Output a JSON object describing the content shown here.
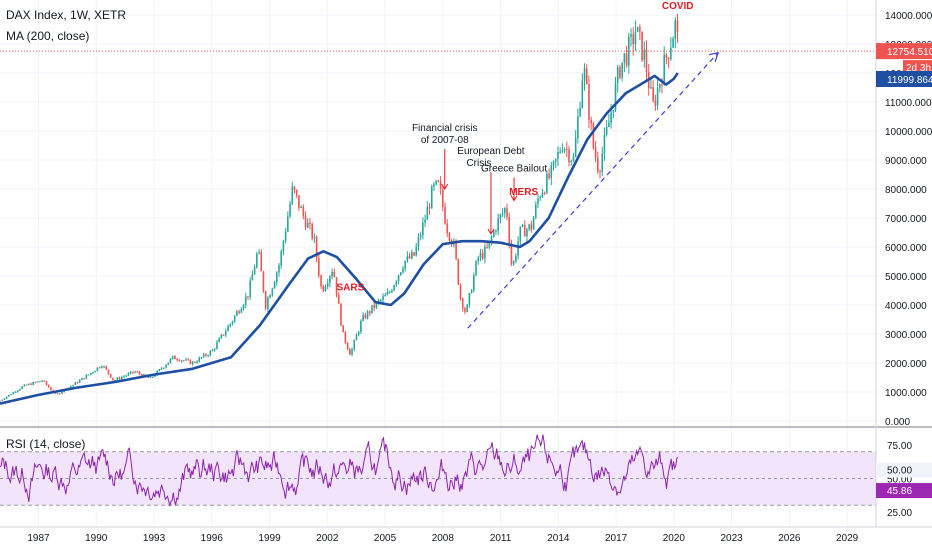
{
  "header": {
    "title": "DAX Index, 1W, XETR",
    "ma_label": "MA (200, close)",
    "rsi_label": "RSI (14, close)"
  },
  "chart_data": {
    "type": "candlestick",
    "price_axis": {
      "min": 0,
      "max": 14000,
      "ticks": [
        "0.000",
        "1000.000",
        "2000.000",
        "3000.000",
        "4000.000",
        "5000.000",
        "6000.000",
        "7000.000",
        "8000.000",
        "9000.000",
        "10000.000",
        "11000.000",
        "12000.000",
        "13000.000",
        "14000.000"
      ]
    },
    "time_axis": {
      "min": 1985.0,
      "max": 2030.5,
      "ticks": [
        "1987",
        "1990",
        "1993",
        "1996",
        "1999",
        "2002",
        "2005",
        "2008",
        "2011",
        "2014",
        "2017",
        "2020",
        "2023",
        "2026",
        "2029"
      ]
    },
    "price_path": [
      [
        1985.0,
        700
      ],
      [
        1986.2,
        1200
      ],
      [
        1987.2,
        1400
      ],
      [
        1987.9,
        900
      ],
      [
        1988.8,
        1250
      ],
      [
        1989.6,
        1600
      ],
      [
        1990.3,
        1950
      ],
      [
        1990.9,
        1400
      ],
      [
        1992.0,
        1700
      ],
      [
        1992.8,
        1450
      ],
      [
        1994.0,
        2200
      ],
      [
        1995.0,
        2000
      ],
      [
        1996.0,
        2400
      ],
      [
        1997.0,
        3400
      ],
      [
        1997.9,
        4400
      ],
      [
        1998.4,
        5900
      ],
      [
        1998.8,
        4000
      ],
      [
        1999.5,
        5400
      ],
      [
        2000.2,
        8000
      ],
      [
        2000.8,
        7000
      ],
      [
        2001.3,
        6300
      ],
      [
        2001.7,
        4500
      ],
      [
        2002.3,
        5300
      ],
      [
        2002.8,
        3000
      ],
      [
        2003.2,
        2300
      ],
      [
        2003.8,
        3500
      ],
      [
        2004.5,
        4000
      ],
      [
        2005.2,
        4400
      ],
      [
        2006.0,
        5500
      ],
      [
        2006.5,
        5700
      ],
      [
        2007.0,
        6800
      ],
      [
        2007.5,
        8000
      ],
      [
        2007.8,
        8100
      ],
      [
        2008.2,
        6700
      ],
      [
        2008.6,
        6000
      ],
      [
        2008.9,
        4300
      ],
      [
        2009.2,
        3700
      ],
      [
        2009.8,
        5600
      ],
      [
        2010.3,
        5900
      ],
      [
        2010.8,
        6800
      ],
      [
        2011.3,
        7400
      ],
      [
        2011.6,
        5200
      ],
      [
        2012.0,
        6500
      ],
      [
        2012.6,
        6700
      ],
      [
        2013.0,
        7800
      ],
      [
        2013.7,
        8600
      ],
      [
        2014.2,
        9600
      ],
      [
        2014.8,
        9000
      ],
      [
        2015.3,
        12300
      ],
      [
        2015.8,
        9500
      ],
      [
        2016.1,
        8700
      ],
      [
        2016.6,
        10200
      ],
      [
        2017.2,
        12200
      ],
      [
        2017.8,
        13000
      ],
      [
        2018.0,
        13500
      ],
      [
        2018.5,
        12500
      ],
      [
        2018.9,
        10800
      ],
      [
        2019.3,
        11800
      ],
      [
        2019.8,
        13000
      ],
      [
        2020.1,
        13700
      ],
      [
        2020.25,
        12754.51
      ]
    ],
    "ma_200": {
      "name": "MA (200, close)",
      "points": [
        [
          1985.0,
          600
        ],
        [
          1987.0,
          900
        ],
        [
          1989.0,
          1150
        ],
        [
          1991.0,
          1350
        ],
        [
          1993.0,
          1600
        ],
        [
          1995.0,
          1800
        ],
        [
          1997.0,
          2200
        ],
        [
          1998.5,
          3300
        ],
        [
          2000.0,
          4700
        ],
        [
          2001.0,
          5600
        ],
        [
          2001.8,
          5850
        ],
        [
          2002.5,
          5650
        ],
        [
          2003.5,
          4900
        ],
        [
          2004.5,
          4100
        ],
        [
          2005.3,
          4000
        ],
        [
          2006.0,
          4400
        ],
        [
          2007.0,
          5400
        ],
        [
          2008.0,
          6100
        ],
        [
          2009.0,
          6200
        ],
        [
          2010.0,
          6200
        ],
        [
          2011.0,
          6150
        ],
        [
          2012.0,
          6000
        ],
        [
          2012.5,
          6200
        ],
        [
          2013.5,
          7000
        ],
        [
          2014.5,
          8400
        ],
        [
          2015.5,
          9700
        ],
        [
          2016.5,
          10600
        ],
        [
          2017.5,
          11300
        ],
        [
          2018.5,
          11700
        ],
        [
          2019.0,
          11900
        ],
        [
          2019.6,
          11600
        ],
        [
          2020.0,
          11800
        ],
        [
          2020.2,
          12000
        ]
      ]
    },
    "current_price": {
      "label": "12754.510",
      "value": 12754.51,
      "countdown": "2d 3h"
    },
    "ma_price": {
      "label": "11999.864",
      "value": 11999.864
    },
    "trendline": {
      "from": [
        2009.3,
        3200
      ],
      "to": [
        2022.3,
        12700
      ]
    },
    "annotations": [
      {
        "text": "COVID",
        "x": 2020.2,
        "y": 14200,
        "color": "#e31b23"
      },
      {
        "text": "Financial crisis",
        "text2": "of 2007-08",
        "x": 2008.1,
        "y": 10000,
        "arrow_to": 8000
      },
      {
        "text": "European Debt",
        "text2": "Crisis",
        "x": 2010.5,
        "y": 9200,
        "arrow_to": 6450
      },
      {
        "text": "Greece Bailout",
        "x": 2011.7,
        "y": 8600,
        "arrow_to": 7600
      },
      {
        "text": "MERS",
        "x": 2012.2,
        "y": 7800,
        "color": "#e31b23"
      },
      {
        "text": "SARS",
        "x": 2003.2,
        "y": 4500,
        "color": "#e31b23"
      }
    ],
    "rsi": {
      "name": "RSI (14, close)",
      "axis_ticks": [
        "25.00",
        "50.00",
        "75.00"
      ],
      "band": [
        30,
        70
      ],
      "value_labels": {
        "upper": "50.00",
        "lower": "45.86"
      },
      "current": 45.86
    }
  }
}
